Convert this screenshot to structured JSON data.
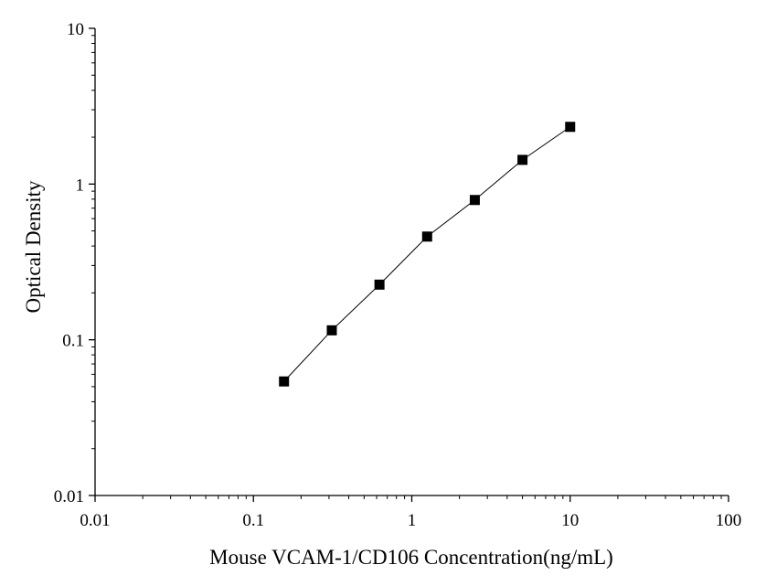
{
  "chart_data": {
    "type": "scatter",
    "title": "",
    "xlabel": "Mouse VCAM-1/CD106 Concentration(ng/mL)",
    "ylabel": "Optical Density",
    "x_scale": "log",
    "y_scale": "log",
    "xlim": [
      0.01,
      100
    ],
    "ylim": [
      0.01,
      10
    ],
    "x_ticks": [
      0.01,
      0.1,
      1,
      10,
      100
    ],
    "x_tick_labels": [
      "0.01",
      "0.1",
      "1",
      "10",
      "100"
    ],
    "y_ticks": [
      0.01,
      0.1,
      1,
      10
    ],
    "y_tick_labels": [
      "0.01",
      "0.1",
      "1",
      "10"
    ],
    "grid": false,
    "legend": "none",
    "series": [
      {
        "marker": "square",
        "line": true,
        "color": "#000000",
        "x": [
          0.156,
          0.3125,
          0.625,
          1.25,
          2.5,
          5,
          10
        ],
        "y": [
          0.054,
          0.115,
          0.226,
          0.46,
          0.79,
          1.43,
          2.33
        ]
      }
    ]
  }
}
